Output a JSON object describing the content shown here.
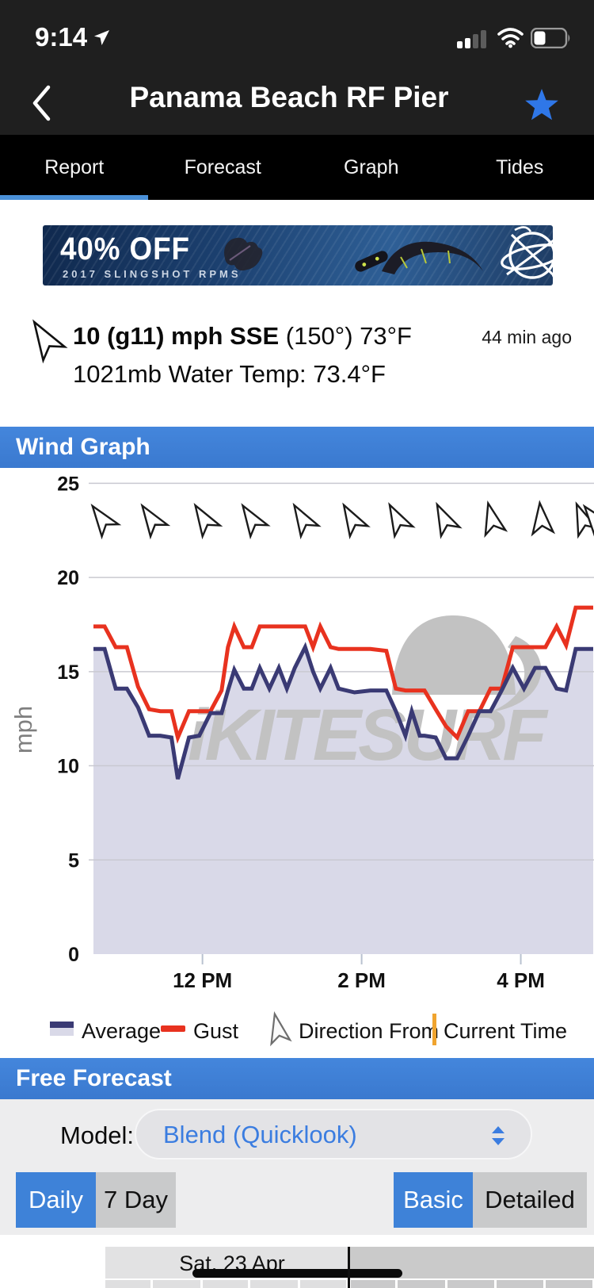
{
  "status_bar": {
    "time": "9:14"
  },
  "header": {
    "title": "Panama Beach RF Pier"
  },
  "tabs": [
    {
      "label": "Report",
      "active": true
    },
    {
      "label": "Forecast",
      "active": false
    },
    {
      "label": "Graph",
      "active": false
    },
    {
      "label": "Tides",
      "active": false
    }
  ],
  "banner": {
    "headline": "40% OFF",
    "subhead": "2017 SLINGSHOT RPMS"
  },
  "report": {
    "wind_main": "10 (g11) mph SSE",
    "wind_detail": " (150°) 73°F",
    "updated": "44 min ago",
    "secondary": "1021mb Water Temp: 73.4°F"
  },
  "sections": {
    "wind_graph": "Wind Graph",
    "free_forecast": "Free Forecast"
  },
  "legend": {
    "average": "Average",
    "gust": "Gust",
    "direction": "Direction From",
    "current_time": "Current Time"
  },
  "forecast_controls": {
    "model_label": "Model:",
    "model_value": "Blend (Quicklook)",
    "view_toggle": [
      {
        "label": "Daily",
        "active": true
      },
      {
        "label": "7 Day",
        "active": false
      }
    ],
    "detail_toggle": [
      {
        "label": "Basic",
        "active": true
      },
      {
        "label": "Detailed",
        "active": false
      }
    ]
  },
  "table": {
    "day": "Sat, 23 Apr"
  },
  "colors": {
    "accent_blue": "#3d7ed7",
    "tab_underline": "#4a90d8",
    "star_blue": "#2f77e8",
    "average_line": "#3a3a74",
    "average_fill": "#d9d9e8",
    "gust_line": "#e8321f",
    "current_time": "#f0a42f",
    "watermark_gray": "#c2c2c2",
    "gridline": "#c9c9d1"
  },
  "chart_data": {
    "type": "line",
    "title": "Wind Graph",
    "ylabel": "mph",
    "ylim": [
      0,
      25
    ],
    "yticks": [
      0,
      5,
      10,
      15,
      20,
      25
    ],
    "grid": true,
    "legend_position": "bottom",
    "watermark": "iKITESURF",
    "x_unit": "hour_of_day",
    "x_range": [
      10.63,
      16.92
    ],
    "xticks": [
      {
        "value": 12,
        "label": "12 PM"
      },
      {
        "value": 14,
        "label": "2 PM"
      },
      {
        "value": 16,
        "label": "4 PM"
      }
    ],
    "x": [
      10.63,
      10.77,
      10.91,
      11.05,
      11.19,
      11.33,
      11.47,
      11.61,
      11.69,
      11.83,
      11.96,
      12.1,
      12.24,
      12.32,
      12.4,
      12.52,
      12.62,
      12.72,
      12.84,
      12.96,
      13.06,
      13.16,
      13.29,
      13.39,
      13.48,
      13.61,
      13.71,
      13.91,
      14.11,
      14.31,
      14.43,
      14.55,
      14.63,
      14.73,
      14.79,
      14.93,
      15.06,
      15.2,
      15.34,
      15.48,
      15.62,
      15.76,
      15.9,
      16.04,
      16.18,
      16.31,
      16.45,
      16.57,
      16.69,
      16.81,
      16.91
    ],
    "series": [
      {
        "name": "Average",
        "color": "#3a3a74",
        "values": [
          16.2,
          16.2,
          14.1,
          14.1,
          13.1,
          11.6,
          11.6,
          11.5,
          9.3,
          11.5,
          11.6,
          12.8,
          12.8,
          14.0,
          15.1,
          14.1,
          14.1,
          15.2,
          14.1,
          15.2,
          14.1,
          15.2,
          16.3,
          15.0,
          14.1,
          15.2,
          14.1,
          13.9,
          14.0,
          14.0,
          12.9,
          11.6,
          12.9,
          11.6,
          11.6,
          11.5,
          10.4,
          10.4,
          11.6,
          12.9,
          12.9,
          14.0,
          15.2,
          14.1,
          15.2,
          15.2,
          14.1,
          14.0,
          16.2,
          16.2,
          16.2
        ]
      },
      {
        "name": "Gust",
        "color": "#e8321f",
        "values": [
          17.4,
          17.4,
          16.3,
          16.3,
          14.2,
          13.0,
          12.9,
          12.9,
          11.5,
          12.9,
          12.9,
          12.9,
          14.0,
          16.3,
          17.4,
          16.3,
          16.3,
          17.4,
          17.4,
          17.4,
          17.4,
          17.4,
          17.4,
          16.3,
          17.4,
          16.3,
          16.2,
          16.2,
          16.2,
          16.1,
          14.1,
          14.0,
          14.0,
          14.0,
          14.0,
          13.0,
          12.1,
          11.5,
          12.9,
          12.9,
          14.1,
          14.1,
          16.3,
          16.3,
          16.3,
          16.3,
          17.4,
          16.4,
          18.4,
          18.4,
          18.4
        ]
      }
    ],
    "direction_arrows": [
      {
        "hour": 10.74,
        "angle": -36
      },
      {
        "hour": 11.36,
        "angle": -34
      },
      {
        "hour": 12.02,
        "angle": -32
      },
      {
        "hour": 12.62,
        "angle": -33
      },
      {
        "hour": 13.26,
        "angle": -31
      },
      {
        "hour": 13.88,
        "angle": -30
      },
      {
        "hour": 14.45,
        "angle": -28
      },
      {
        "hour": 15.04,
        "angle": -26
      },
      {
        "hour": 15.64,
        "angle": -14
      },
      {
        "hour": 16.26,
        "angle": -6
      },
      {
        "hour": 16.78,
        "angle": -22
      },
      {
        "hour": 16.93,
        "angle": -38
      }
    ]
  }
}
